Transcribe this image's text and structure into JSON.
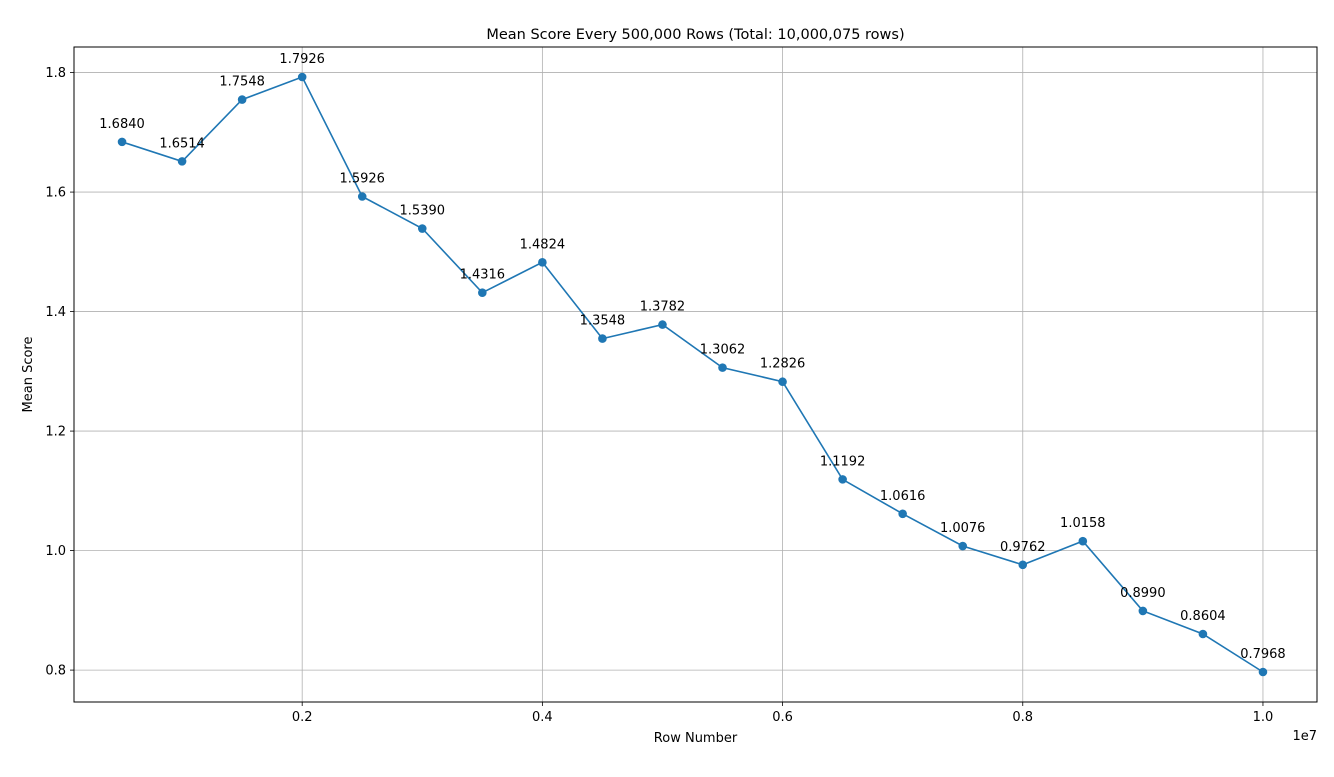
{
  "chart_data": {
    "type": "line",
    "title": "Mean Score Every 500,000 Rows (Total: 10,000,075 rows)",
    "xlabel": "Row Number",
    "ylabel": "Mean Score",
    "x_offset_label": "1e7",
    "grid": true,
    "xlim": [
      100000,
      10450000
    ],
    "ylim": [
      0.7466,
      1.8428
    ],
    "x_ticks": [
      {
        "value": 2000000,
        "label": "0.2"
      },
      {
        "value": 4000000,
        "label": "0.4"
      },
      {
        "value": 6000000,
        "label": "0.6"
      },
      {
        "value": 8000000,
        "label": "0.8"
      },
      {
        "value": 10000000,
        "label": "1.0"
      }
    ],
    "y_ticks": [
      {
        "value": 0.8,
        "label": "0.8"
      },
      {
        "value": 1.0,
        "label": "1.0"
      },
      {
        "value": 1.2,
        "label": "1.2"
      },
      {
        "value": 1.4,
        "label": "1.4"
      },
      {
        "value": 1.6,
        "label": "1.6"
      },
      {
        "value": 1.8,
        "label": "1.8"
      }
    ],
    "color": "#1f77b4",
    "series": [
      {
        "x": [
          500000,
          1000000,
          1500000,
          2000000,
          2500000,
          3000000,
          3500000,
          4000000,
          4500000,
          5000000,
          5500000,
          6000000,
          6500000,
          7000000,
          7500000,
          8000000,
          8500000,
          9000000,
          9500000,
          10000000
        ],
        "values": [
          1.684,
          1.6514,
          1.7548,
          1.7926,
          1.5926,
          1.539,
          1.4316,
          1.4824,
          1.3548,
          1.3782,
          1.3062,
          1.2826,
          1.1192,
          1.0616,
          1.0076,
          0.9762,
          1.0158,
          0.899,
          0.8604,
          0.7968
        ],
        "labels": [
          "1.6840",
          "1.6514",
          "1.7548",
          "1.7926",
          "1.5926",
          "1.5390",
          "1.4316",
          "1.4824",
          "1.3548",
          "1.3782",
          "1.3062",
          "1.2826",
          "1.1192",
          "1.0616",
          "1.0076",
          "0.9762",
          "1.0158",
          "0.8990",
          "0.8604",
          "0.7968"
        ]
      }
    ]
  }
}
